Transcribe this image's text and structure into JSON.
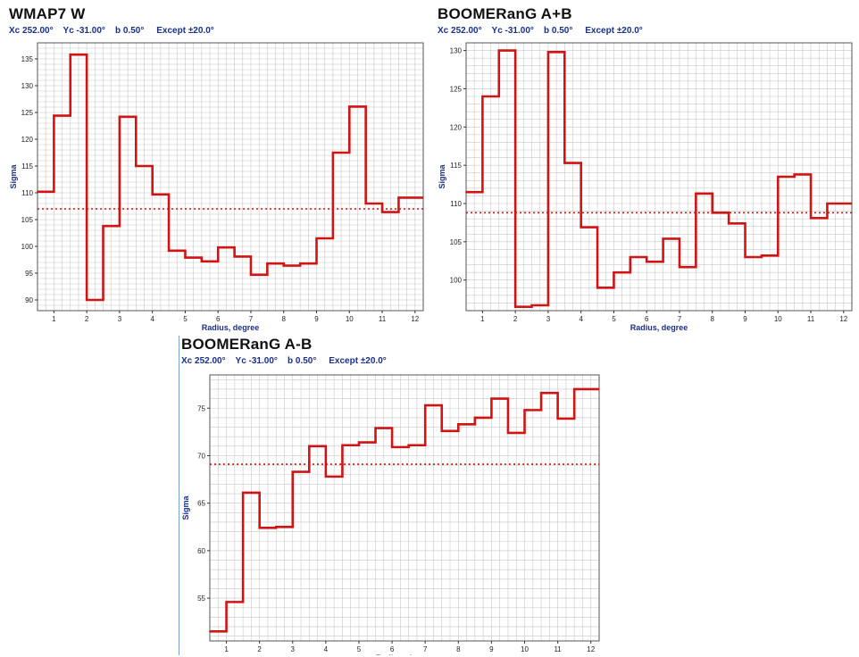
{
  "style": {
    "line_color": "#d01414",
    "ref_line_color": "#d01414",
    "grid_color": "#c8c8c8",
    "axis_label_color": "#1a2f8a",
    "title_color": "#111111"
  },
  "panels": [
    {
      "title": "WMAP7  W",
      "info": "Xc 252.00°    Yc -31.00°    b 0.50°     Except ±20.0°"
    },
    {
      "title": "BOOMERanG  A+B",
      "info": "Xc 252.00°    Yc -31.00°    b 0.50°     Except ±20.0°"
    },
    {
      "title": "BOOMERanG  A-B",
      "info": "Xc 252.00°    Yc -31.00°    b 0.50°     Except ±20.0°"
    }
  ],
  "chart_data": [
    {
      "type": "line",
      "step": true,
      "title": "WMAP7  W",
      "xlabel": "Radius, degree",
      "ylabel": "Sigma",
      "xlim": [
        0.5,
        12.25
      ],
      "ylim": [
        88,
        138
      ],
      "xticks": [
        1,
        2,
        3,
        4,
        5,
        6,
        7,
        8,
        9,
        10,
        11,
        12
      ],
      "yticks": [
        90,
        95,
        100,
        105,
        110,
        115,
        120,
        125,
        130,
        135
      ],
      "x": [
        0.5,
        1.0,
        1.5,
        2.0,
        2.5,
        3.0,
        3.5,
        4.0,
        4.5,
        5.0,
        5.5,
        6.0,
        6.5,
        7.0,
        7.5,
        8.0,
        8.5,
        9.0,
        9.5,
        10.0,
        10.5,
        11.0,
        11.5,
        12.0
      ],
      "series": [
        {
          "values": [
            110.2,
            124.4,
            135.8,
            90.0,
            103.8,
            124.2,
            115.0,
            109.7,
            99.2,
            97.9,
            97.2,
            99.8,
            98.1,
            94.7,
            96.8,
            96.4,
            96.8,
            101.5,
            117.5,
            126.1,
            108.0,
            106.4,
            109.1,
            109.1
          ]
        }
      ],
      "reference_line": 107.0
    },
    {
      "type": "line",
      "step": true,
      "title": "BOOMERanG  A+B",
      "xlabel": "Radius, degree",
      "ylabel": "Sigma",
      "xlim": [
        0.5,
        12.25
      ],
      "ylim": [
        96,
        131
      ],
      "xticks": [
        1,
        2,
        3,
        4,
        5,
        6,
        7,
        8,
        9,
        10,
        11,
        12
      ],
      "yticks": [
        100,
        105,
        110,
        115,
        120,
        125,
        130
      ],
      "x": [
        0.5,
        1.0,
        1.5,
        2.0,
        2.5,
        3.0,
        3.5,
        4.0,
        4.5,
        5.0,
        5.5,
        6.0,
        6.5,
        7.0,
        7.5,
        8.0,
        8.5,
        9.0,
        9.5,
        10.0,
        10.5,
        11.0,
        11.5,
        12.0
      ],
      "series": [
        {
          "values": [
            111.5,
            124.0,
            130.0,
            96.5,
            96.7,
            129.8,
            115.3,
            106.9,
            99.0,
            101.0,
            103.0,
            102.4,
            105.4,
            101.7,
            111.3,
            108.8,
            107.4,
            103.0,
            103.2,
            113.5,
            113.8,
            108.1,
            110.0,
            110.0
          ]
        }
      ],
      "reference_line": 108.8
    },
    {
      "type": "line",
      "step": true,
      "title": "BOOMERanG  A-B",
      "xlabel": "Radius, degree",
      "ylabel": "Sigma",
      "xlim": [
        0.5,
        12.25
      ],
      "ylim": [
        50.5,
        78.5
      ],
      "xticks": [
        1,
        2,
        3,
        4,
        5,
        6,
        7,
        8,
        9,
        10,
        11,
        12
      ],
      "yticks": [
        55,
        60,
        65,
        70,
        75
      ],
      "x": [
        0.5,
        1.0,
        1.5,
        2.0,
        2.5,
        3.0,
        3.5,
        4.0,
        4.5,
        5.0,
        5.5,
        6.0,
        6.5,
        7.0,
        7.5,
        8.0,
        8.5,
        9.0,
        9.5,
        10.0,
        10.5,
        11.0,
        11.5,
        12.0
      ],
      "series": [
        {
          "values": [
            51.5,
            54.6,
            66.1,
            62.4,
            62.5,
            68.3,
            71.0,
            67.8,
            71.1,
            71.4,
            72.9,
            70.9,
            71.1,
            75.3,
            72.6,
            73.3,
            74.0,
            76.0,
            72.4,
            74.8,
            76.6,
            73.9,
            77.0,
            77.0
          ]
        }
      ],
      "reference_line": 69.1
    }
  ]
}
